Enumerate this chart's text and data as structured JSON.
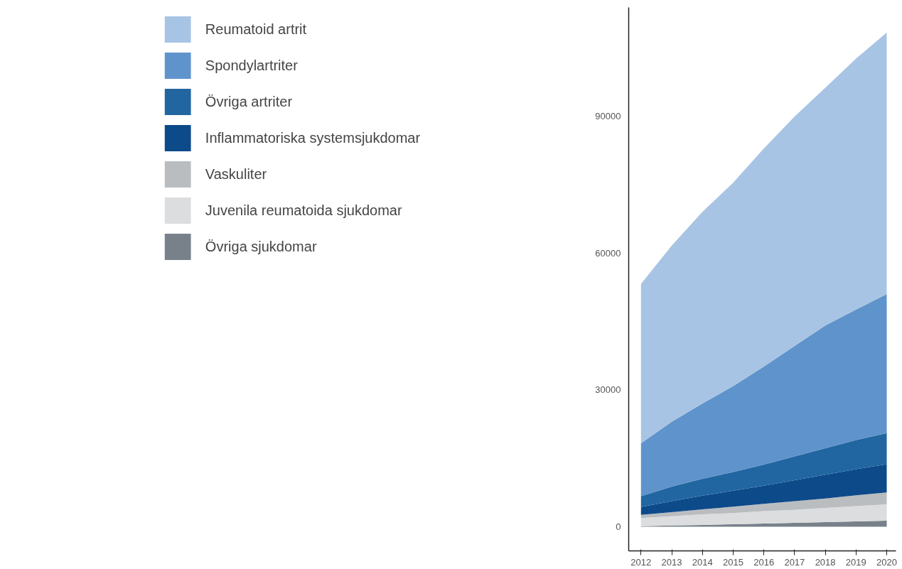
{
  "chart_data": {
    "type": "area",
    "stacked": true,
    "x": [
      2012,
      2013,
      2014,
      2015,
      2016,
      2017,
      2018,
      2019,
      2020
    ],
    "xlim": [
      2011.6,
      2020.3
    ],
    "xticks": [
      2012,
      2013,
      2014,
      2015,
      2016,
      2017,
      2018,
      2019,
      2020
    ],
    "ylim": [
      -5300,
      113800
    ],
    "yticks": [
      0,
      30000,
      60000,
      90000
    ],
    "grid": false,
    "legend": "left",
    "series": [
      {
        "name": "Övriga sjukdomar",
        "color": "#78818a",
        "values": [
          100,
          250,
          400,
          550,
          700,
          850,
          1000,
          1150,
          1300
        ]
      },
      {
        "name": "Juvenila reumatoida sjukdomar",
        "color": "#dcdddf",
        "values": [
          1800,
          2050,
          2300,
          2450,
          2700,
          2850,
          3100,
          3350,
          3600
        ]
      },
      {
        "name": "Vaskuliter",
        "color": "#babdc0",
        "values": [
          700,
          900,
          1100,
          1400,
          1600,
          1900,
          2100,
          2400,
          2600
        ]
      },
      {
        "name": "Inflammatoriska systemsjukdomar",
        "color": "#0d4a8a",
        "values": [
          1700,
          2400,
          3000,
          3500,
          4000,
          4600,
          5200,
          5700,
          6200
        ]
      },
      {
        "name": "Övriga artriter",
        "color": "#2166a1",
        "values": [
          2400,
          3200,
          3700,
          4100,
          4600,
          5200,
          5800,
          6400,
          6800
        ]
      },
      {
        "name": "Spondylartriter",
        "color": "#5f93cb",
        "values": [
          11600,
          14200,
          16500,
          18800,
          21500,
          24200,
          26900,
          28600,
          30500
        ]
      },
      {
        "name": "Reumatoid artrit",
        "color": "#a8c4e4",
        "values": [
          34900,
          38600,
          42000,
          44600,
          47800,
          50300,
          52100,
          55000,
          57300
        ]
      }
    ]
  }
}
